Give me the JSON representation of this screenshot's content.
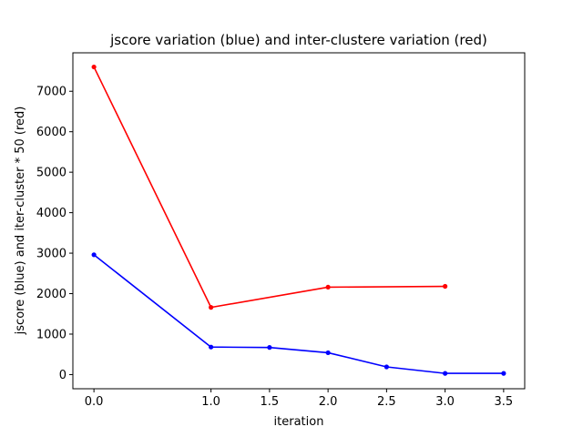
{
  "chart_data": {
    "type": "line",
    "title": "jscore variation (blue) and inter-clustere variation (red)",
    "xlabel": "iteration",
    "ylabel": "jscore (blue) and iter-cluster * 50 (red)",
    "xlim": [
      -0.18,
      3.68
    ],
    "ylim": [
      -350,
      7950
    ],
    "xticks": [
      0.0,
      1.0,
      1.5,
      2.0,
      2.5,
      3.0,
      3.5
    ],
    "xtick_labels": [
      "0.0",
      "1.0",
      "1.5",
      "2.0",
      "2.5",
      "3.0",
      "3.5"
    ],
    "yticks": [
      0,
      1000,
      2000,
      3000,
      4000,
      5000,
      6000,
      7000
    ],
    "ytick_labels": [
      "0",
      "1000",
      "2000",
      "3000",
      "4000",
      "5000",
      "6000",
      "7000"
    ],
    "grid": false,
    "series": [
      {
        "color": "#0000ff",
        "x": [
          0.0,
          1.0,
          1.5,
          2.0,
          2.5,
          3.0,
          3.5
        ],
        "y": [
          2960,
          680,
          670,
          540,
          190,
          30,
          30
        ]
      },
      {
        "color": "#ff0000",
        "x": [
          0.0,
          1.0,
          2.0,
          3.0
        ],
        "y": [
          7600,
          1660,
          2160,
          2180
        ]
      }
    ]
  }
}
